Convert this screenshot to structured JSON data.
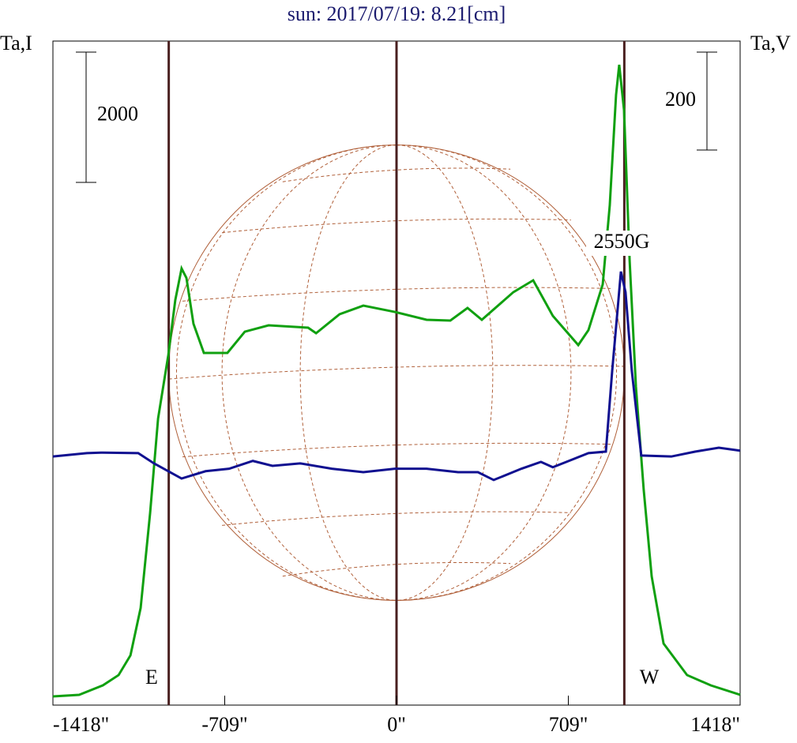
{
  "chart_data": {
    "type": "line",
    "title": "sun: 2017/07/19: 8.21[cm]",
    "ylabel": "Ta,I",
    "y2label": "Ta,V",
    "xlim": [
      -1418,
      1418
    ],
    "xticks": [
      {
        "value": -1418,
        "label": "-1418\""
      },
      {
        "value": -709,
        "label": "-709\""
      },
      {
        "value": 0,
        "label": "0\""
      },
      {
        "value": 709,
        "label": "709\""
      },
      {
        "value": 1418,
        "label": "1418\""
      }
    ],
    "ylim": [
      0,
      10194
    ],
    "y2lim": [
      -510,
      847
    ],
    "scale_bars": [
      {
        "label": "2000",
        "value": 2000,
        "axis": "y"
      },
      {
        "label": "200",
        "value": 200,
        "axis": "y2"
      }
    ],
    "vlines": [
      -940,
      0,
      940
    ],
    "annotations": [
      "2550G",
      "E",
      "W"
    ],
    "series": [
      {
        "name": "I",
        "color": "#10a010",
        "x": [
          -1418,
          -1310,
          -1212,
          -1147,
          -1098,
          -1056,
          -1017,
          -984,
          -942,
          -913,
          -887,
          -867,
          -838,
          -795,
          -698,
          -626,
          -528,
          -365,
          -332,
          -235,
          -137,
          -7,
          124,
          222,
          293,
          352,
          482,
          564,
          645,
          750,
          792,
          851,
          880,
          906,
          919,
          939,
          962,
          988,
          1020,
          1053,
          1102,
          1199,
          1297,
          1418
        ],
        "values": [
          133,
          158,
          303,
          461,
          764,
          1491,
          2945,
          4400,
          5370,
          6218,
          6703,
          6557,
          5854,
          5406,
          5406,
          5733,
          5830,
          5794,
          5709,
          6000,
          6133,
          6036,
          5915,
          5903,
          6097,
          5915,
          6339,
          6521,
          5976,
          5527,
          5757,
          6460,
          7672,
          9369,
          9830,
          9127,
          6824,
          4885,
          3309,
          1976,
          945,
          461,
          303,
          158
        ]
      },
      {
        "name": "V",
        "color": "#101090",
        "axis": "y2",
        "x": [
          -1418,
          -1278,
          -1212,
          -1066,
          -1001,
          -887,
          -788,
          -691,
          -593,
          -512,
          -398,
          -267,
          -137,
          -7,
          124,
          254,
          336,
          401,
          515,
          596,
          645,
          711,
          792,
          864,
          890,
          913,
          926,
          945,
          971,
          1010,
          1134,
          1232,
          1330,
          1418
        ],
        "values": [
          -2,
          5,
          6,
          5,
          -16,
          -47,
          -32,
          -27,
          -11,
          -21,
          -16,
          -27,
          -34,
          -27,
          -27,
          -34,
          -34,
          -50,
          -27,
          -13,
          -24,
          -11,
          5,
          8,
          173,
          302,
          376,
          334,
          173,
          0,
          -2,
          8,
          16,
          10
        ]
      }
    ]
  }
}
